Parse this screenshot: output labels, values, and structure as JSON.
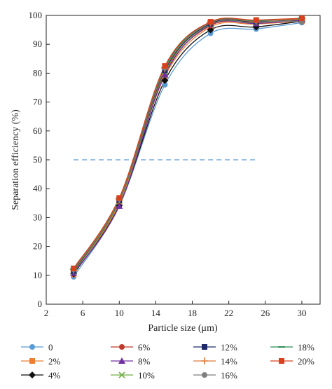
{
  "chart_data": {
    "type": "line",
    "xlabel": "Particle size (μm)",
    "ylabel": "Separation efficiency (%)",
    "xlim": [
      2,
      32
    ],
    "ylim": [
      0,
      100
    ],
    "x_ticks": [
      2,
      6,
      10,
      14,
      18,
      22,
      26,
      30
    ],
    "y_ticks": [
      0,
      10,
      20,
      30,
      40,
      50,
      60,
      70,
      80,
      90,
      100
    ],
    "grid": false,
    "legend_position": "bottom",
    "x": [
      5,
      10,
      15,
      20,
      25,
      30
    ],
    "reference_line": {
      "y": 50,
      "x_start": 5,
      "x_end": 25,
      "style": "dashed",
      "color": "#5b9bd5"
    },
    "series": [
      {
        "name": "0",
        "color": "#5b9bd5",
        "marker": "circle",
        "values": [
          9.5,
          34.0,
          76.0,
          93.8,
          95.3,
          97.5
        ]
      },
      {
        "name": "2%",
        "color": "#ed7d31",
        "marker": "square",
        "values": [
          10.3,
          35.0,
          79.0,
          96.0,
          97.0,
          98.0
        ]
      },
      {
        "name": "4%",
        "color": "#111111",
        "marker": "diamond",
        "values": [
          10.5,
          34.2,
          77.5,
          95.0,
          96.0,
          98.0
        ]
      },
      {
        "name": "6%",
        "color": "#c0392b",
        "marker": "circle",
        "values": [
          11.0,
          35.5,
          80.0,
          96.5,
          97.5,
          98.5
        ]
      },
      {
        "name": "8%",
        "color": "#7030a0",
        "marker": "triangle",
        "values": [
          10.8,
          34.0,
          79.5,
          96.8,
          97.2,
          98.3
        ]
      },
      {
        "name": "10%",
        "color": "#70ad47",
        "marker": "x",
        "values": [
          11.2,
          35.5,
          80.5,
          97.0,
          97.6,
          98.6
        ]
      },
      {
        "name": "12%",
        "color": "#1f2a6b",
        "marker": "square",
        "values": [
          11.5,
          36.0,
          81.0,
          97.2,
          97.8,
          98.7
        ]
      },
      {
        "name": "14%",
        "color": "#e07b39",
        "marker": "plus",
        "values": [
          11.8,
          36.2,
          81.5,
          97.5,
          98.0,
          98.8
        ]
      },
      {
        "name": "16%",
        "color": "#7f7f7f",
        "marker": "circle",
        "values": [
          12.0,
          36.4,
          81.8,
          97.6,
          98.1,
          97.8
        ]
      },
      {
        "name": "18%",
        "color": "#2e8b57",
        "marker": "dash",
        "values": [
          12.2,
          36.6,
          82.0,
          97.7,
          98.2,
          99.0
        ]
      },
      {
        "name": "20%",
        "color": "#d9411e",
        "marker": "square",
        "values": [
          12.4,
          36.8,
          82.5,
          97.8,
          98.4,
          99.0
        ]
      }
    ]
  }
}
